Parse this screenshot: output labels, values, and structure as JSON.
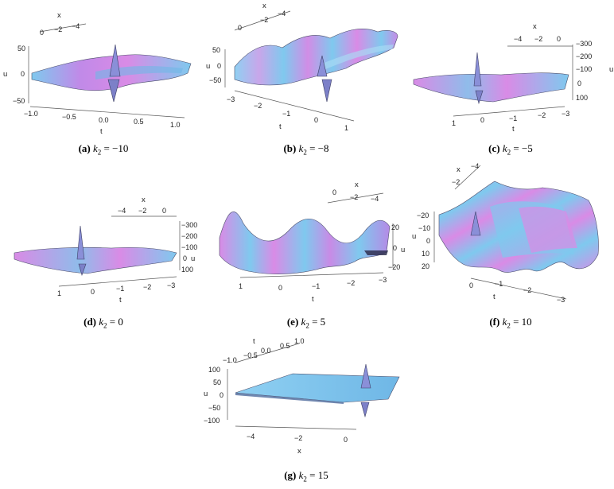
{
  "figure": {
    "panels": [
      {
        "id": "a",
        "tag": "(a)",
        "k": "k",
        "sub": "2",
        "eq": "= −10",
        "axes": {
          "x_title": "x",
          "x_ticks": [
            "0",
            "−2",
            "−4"
          ],
          "u_title": "u",
          "u_ticks": [
            "50",
            "0",
            "−50"
          ],
          "t_title": "t",
          "t_ticks": [
            "−1.0",
            "−0.5",
            "0.0",
            "0.5",
            "1.0"
          ]
        }
      },
      {
        "id": "b",
        "tag": "(b)",
        "k": "k",
        "sub": "2",
        "eq": "= −8",
        "axes": {
          "x_title": "x",
          "x_ticks": [
            "0",
            "−2",
            "−4"
          ],
          "u_title": "u",
          "u_ticks": [
            "50",
            "0",
            "−50"
          ],
          "t_title": "t",
          "t_ticks": [
            "−3",
            "−2",
            "−1",
            "0",
            "1"
          ]
        }
      },
      {
        "id": "c",
        "tag": "(c)",
        "k": "k",
        "sub": "2",
        "eq": "= −5",
        "axes": {
          "x_title": "x",
          "x_ticks": [
            "−4",
            "−2",
            "0"
          ],
          "u_title": "u",
          "u_ticks": [
            "−300",
            "−200",
            "−100",
            "0",
            "100"
          ],
          "t_title": "t",
          "t_ticks": [
            "1",
            "0",
            "−1",
            "−2",
            "−3"
          ]
        }
      },
      {
        "id": "d",
        "tag": "(d)",
        "k": "k",
        "sub": "2",
        "eq": "= 0",
        "axes": {
          "x_title": "x",
          "x_ticks": [
            "−4",
            "−2",
            "0"
          ],
          "u_title": "u",
          "u_ticks": [
            "−300",
            "−200",
            "−100",
            "0",
            "100"
          ],
          "t_title": "t",
          "t_ticks": [
            "1",
            "0",
            "−1",
            "−2",
            "−3"
          ]
        }
      },
      {
        "id": "e",
        "tag": "(e)",
        "k": "k",
        "sub": "2",
        "eq": "= 5",
        "axes": {
          "x_title": "x",
          "x_ticks": [
            "0",
            "−2",
            "−4"
          ],
          "u_title": "u",
          "u_ticks": [
            "20",
            "0",
            "−20"
          ],
          "t_title": "t",
          "t_ticks": [
            "1",
            "0",
            "−1",
            "−2",
            "−3"
          ]
        }
      },
      {
        "id": "f",
        "tag": "(f)",
        "k": "k",
        "sub": "2",
        "eq": "= 10",
        "axes": {
          "x_title": "x",
          "x_ticks": [
            "−4",
            "−2"
          ],
          "u_title": "u",
          "u_ticks": [
            "−20",
            "−10",
            "0",
            "10",
            "20"
          ],
          "t_title": "t",
          "t_ticks": [
            "0",
            "−1",
            "−2",
            "−3"
          ]
        }
      },
      {
        "id": "g",
        "tag": "(g)",
        "k": "k",
        "sub": "2",
        "eq": "= 15",
        "axes": {
          "t_title": "t",
          "t_ticks": [
            "−1.0",
            "−0.5",
            "0.0",
            "0.5",
            "1.0"
          ],
          "u_title": "u",
          "u_ticks": [
            "100",
            "50",
            "0",
            "−50",
            "−100"
          ],
          "x_title": "x",
          "x_ticks": [
            "−4",
            "−2",
            "0"
          ]
        }
      }
    ]
  },
  "colors": {
    "magenta": "#d98be6",
    "cyan": "#7fc9ee",
    "spike": "#8a8fd8"
  }
}
